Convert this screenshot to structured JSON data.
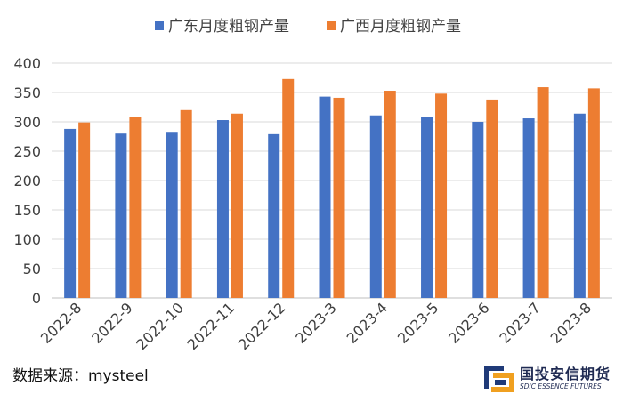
{
  "chart_data": {
    "type": "bar",
    "title": "",
    "xlabel": "",
    "ylabel": "",
    "categories": [
      "2022-8",
      "2022-9",
      "2022-10",
      "2022-11",
      "2022-12",
      "2023-3",
      "2023-4",
      "2023-5",
      "2023-6",
      "2023-7",
      "2023-8"
    ],
    "series": [
      {
        "name": "广东月度粗钢产量",
        "color": "#4472C4",
        "values": [
          288,
          280,
          283,
          303,
          279,
          343,
          311,
          308,
          300,
          306,
          314
        ]
      },
      {
        "name": "广西月度粗钢产量",
        "color": "#ED7D31",
        "values": [
          299,
          309,
          320,
          314,
          373,
          341,
          353,
          348,
          338,
          359,
          357
        ]
      }
    ],
    "ylim": [
      0,
      400
    ],
    "yticks": [
      0,
      50,
      100,
      150,
      200,
      250,
      300,
      350,
      400
    ],
    "grid": true,
    "legend_position": "top"
  },
  "source": "数据来源：mysteel",
  "logo": {
    "name": "国投安信期货",
    "subtitle": "SDIC ESSENCE FUTURES",
    "colors": {
      "navy": "#1f3a78",
      "orange": "#f0a020"
    }
  }
}
